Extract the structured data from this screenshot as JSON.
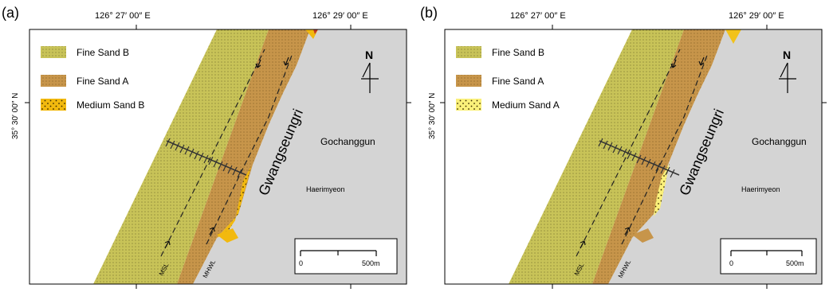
{
  "panels": [
    {
      "tag": "(a)",
      "coord_left": "126° 27′ 00″ E",
      "coord_right": "126° 29′ 00″ E",
      "lat_label": "35° 30′ 00″ N",
      "legend": [
        {
          "label": "Fine Sand B",
          "color": "#c8c358"
        },
        {
          "label": "Fine Sand A",
          "color": "#c7954a"
        },
        {
          "label": "Medium Sand B",
          "color": "#f2b90e"
        }
      ],
      "place_large": "Gwangseungri",
      "place_region": "Gochanggun",
      "place_small": "Haerimyeon",
      "line_msl": "MSL",
      "line_mhwl": "MHWL",
      "scale_zero": "0",
      "scale_end": "500m",
      "north": "N",
      "nearshore_patch": "Medium Sand B"
    },
    {
      "tag": "(b)",
      "coord_left": "126° 27′ 00″ E",
      "coord_right": "126° 29′ 00″ E",
      "lat_label": "35° 30′ 00″ N",
      "legend": [
        {
          "label": "Fine Sand B",
          "color": "#c8c358"
        },
        {
          "label": "Fine Sand A",
          "color": "#c7954a"
        },
        {
          "label": "Medium Sand A",
          "color": "#faf07a"
        }
      ],
      "place_large": "Gwangseungri",
      "place_region": "Gochanggun",
      "place_small": "Haerimyeon",
      "line_msl": "MSL",
      "line_mhwl": "MHWL",
      "scale_zero": "0",
      "scale_end": "500m",
      "north": "N",
      "nearshore_patch": "Medium Sand A"
    }
  ],
  "colors": {
    "land": "#d4d4d4",
    "fine_sand_b": "#c8c358",
    "fine_sand_a": "#c7954a",
    "medium_sand_b": "#f2b90e",
    "medium_sand_a": "#faf07a",
    "frame": "#000000"
  }
}
